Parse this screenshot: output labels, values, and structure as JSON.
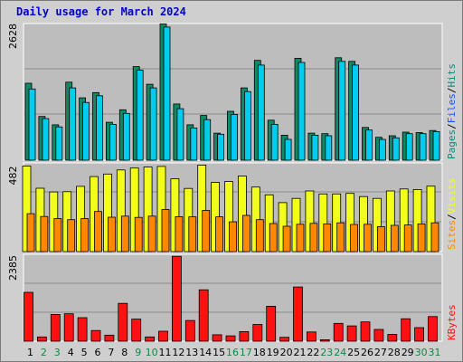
{
  "title": "Daily usage for March 2024",
  "colors": {
    "pages": "#11877a",
    "files": "#1155ff",
    "hits": "#11877a",
    "hits_bar": "#00ccee",
    "pages_bar": "#118866",
    "visits": "#f2ff1a",
    "sites": "#ff8800",
    "kbytes": "#ff1111",
    "weekday": "#000000",
    "weekend": "#118844"
  },
  "chart_data": [
    {
      "type": "bar",
      "title": "Daily usage for March 2024",
      "categories": [
        "1",
        "2",
        "3",
        "4",
        "5",
        "6",
        "7",
        "8",
        "9",
        "10",
        "11",
        "12",
        "13",
        "14",
        "15",
        "16",
        "17",
        "18",
        "19",
        "20",
        "21",
        "22",
        "23",
        "24",
        "25",
        "26",
        "27",
        "28",
        "29",
        "30",
        "31"
      ],
      "weekend_days": [
        "2",
        "3",
        "9",
        "10",
        "16",
        "17",
        "23",
        "24",
        "30",
        "31"
      ],
      "ylim": [
        0,
        2628
      ],
      "yticks": [
        "2628"
      ],
      "legend": [
        {
          "label": "Pages",
          "color": "#11877a"
        },
        {
          "label": "Files",
          "color": "#1155ff"
        },
        {
          "label": "Hits",
          "color": "#11877a"
        }
      ],
      "separator": "/",
      "series": [
        {
          "name": "Pages",
          "values": [
            1480,
            840,
            680,
            1500,
            1200,
            1300,
            730,
            970,
            1800,
            1460,
            2620,
            1080,
            680,
            860,
            520,
            940,
            1390,
            1920,
            770,
            480,
            1960,
            520,
            510,
            1970,
            1900,
            630,
            440,
            470,
            540,
            530,
            570
          ]
        },
        {
          "name": "Hits",
          "values": [
            1370,
            800,
            640,
            1390,
            1110,
            1240,
            690,
            900,
            1730,
            1390,
            2560,
            990,
            620,
            780,
            500,
            880,
            1320,
            1830,
            690,
            400,
            1880,
            480,
            470,
            1900,
            1830,
            580,
            400,
            430,
            510,
            510,
            550
          ]
        }
      ]
    },
    {
      "type": "bar",
      "ylim": [
        0,
        482
      ],
      "yticks": [
        "482"
      ],
      "legend": [
        {
          "label": "Sites",
          "color": "#ff8800"
        },
        {
          "label": "Visits",
          "color": "#f2ff1a"
        }
      ],
      "separator": "/",
      "series": [
        {
          "name": "Visits",
          "values": [
            482,
            357,
            336,
            338,
            368,
            423,
            437,
            460,
            471,
            477,
            480,
            410,
            356,
            488,
            390,
            395,
            426,
            364,
            320,
            276,
            300,
            342,
            325,
            325,
            328,
            310,
            300,
            342,
            353,
            350,
            369
          ]
        },
        {
          "name": "Sites",
          "values": [
            214,
            198,
            186,
            180,
            186,
            226,
            194,
            200,
            193,
            200,
            237,
            197,
            196,
            232,
            196,
            168,
            204,
            180,
            158,
            143,
            154,
            159,
            156,
            162,
            153,
            154,
            141,
            148,
            150,
            156,
            162
          ]
        }
      ]
    },
    {
      "type": "bar",
      "ylim": [
        0,
        2385
      ],
      "yticks": [
        "2385"
      ],
      "legend": [
        {
          "label": "KBytes",
          "color": "#ff1111"
        }
      ],
      "series": [
        {
          "name": "KBytes",
          "values": [
            1370,
            120,
            750,
            770,
            660,
            300,
            170,
            1060,
            620,
            120,
            280,
            2380,
            580,
            1440,
            180,
            150,
            270,
            470,
            980,
            110,
            1520,
            260,
            40,
            500,
            430,
            540,
            330,
            190,
            630,
            380,
            690
          ]
        }
      ]
    }
  ]
}
